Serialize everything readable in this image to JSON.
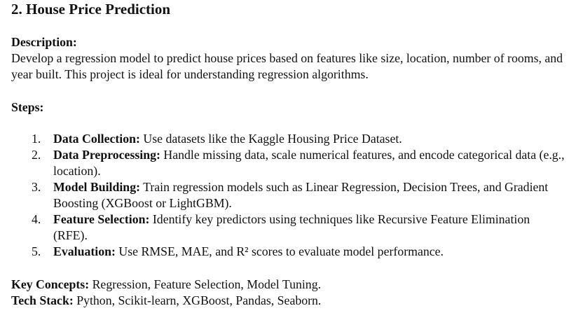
{
  "document": {
    "title": "2. House Price Prediction",
    "description": {
      "label": "Description:",
      "text": "Develop a regression model to predict house prices based on features like size, location, number of rooms, and year built. This project is ideal for understanding regression algorithms."
    },
    "steps": {
      "label": "Steps:",
      "items": [
        {
          "number": "1.",
          "label": "Data Collection:",
          "text": " Use datasets like the Kaggle Housing Price Dataset."
        },
        {
          "number": "2.",
          "label": "Data Preprocessing:",
          "text": " Handle missing data, scale numerical features, and encode categorical data (e.g., location)."
        },
        {
          "number": "3.",
          "label": "Model Building:",
          "text": " Train regression models such as Linear Regression, Decision Trees, and Gradient Boosting (XGBoost or LightGBM)."
        },
        {
          "number": "4.",
          "label": "Feature Selection:",
          "text": " Identify key predictors using techniques like Recursive Feature Elimination (RFE)."
        },
        {
          "number": "5.",
          "label": "Evaluation:",
          "text": " Use RMSE, MAE, and R² scores to evaluate model performance."
        }
      ]
    },
    "key_concepts": {
      "label": "Key Concepts:",
      "text": " Regression, Feature Selection, Model Tuning."
    },
    "tech_stack": {
      "label": "Tech Stack:",
      "text": " Python, Scikit-learn, XGBoost, Pandas, Seaborn."
    }
  }
}
